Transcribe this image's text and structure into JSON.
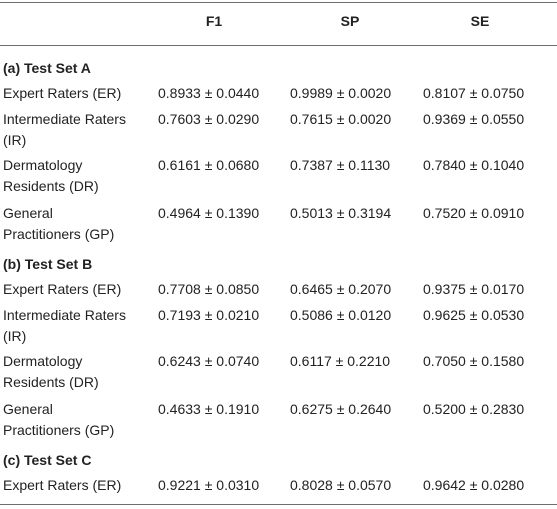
{
  "headers": [
    "",
    "F1",
    "SP",
    "SE"
  ],
  "sections": [
    {
      "title": "(a) Test Set A",
      "rows": [
        {
          "label": [
            "Expert Raters (ER)"
          ],
          "values": [
            "0.8933 ± 0.0440",
            "0.9989 ± 0.0020",
            "0.8107 ± 0.0750"
          ]
        },
        {
          "label": [
            "Intermediate Raters",
            "(IR)"
          ],
          "values": [
            "0.7603 ± 0.0290",
            "0.7615 ± 0.0020",
            "0.9369 ± 0.0550"
          ]
        },
        {
          "label": [
            "Dermatology",
            "Residents (DR)"
          ],
          "values": [
            "0.6161 ± 0.0680",
            "0.7387 ± 0.1130",
            "0.7840 ± 0.1040"
          ]
        },
        {
          "label": [
            "General",
            "Practitioners (GP)"
          ],
          "values": [
            "0.4964 ± 0.1390",
            "0.5013 ± 0.3194",
            "0.7520 ± 0.0910"
          ]
        }
      ]
    },
    {
      "title": "(b) Test Set B",
      "rows": [
        {
          "label": [
            "Expert Raters (ER)"
          ],
          "values": [
            "0.7708 ± 0.0850",
            "0.6465 ± 0.2070",
            "0.9375 ± 0.0170"
          ]
        },
        {
          "label": [
            "Intermediate Raters",
            "(IR)"
          ],
          "values": [
            "0.7193 ± 0.0210",
            "0.5086 ± 0.0120",
            "0.9625 ± 0.0530"
          ]
        },
        {
          "label": [
            "Dermatology",
            "Residents (DR)"
          ],
          "values": [
            "0.6243 ± 0.0740",
            "0.6117 ± 0.2210",
            "0.7050 ± 0.1580"
          ]
        },
        {
          "label": [
            "General",
            "Practitioners (GP)"
          ],
          "values": [
            "0.4633 ± 0.1910",
            "0.6275 ± 0.2640",
            "0.5200 ± 0.2830"
          ]
        }
      ]
    },
    {
      "title": "(c) Test Set C",
      "rows": [
        {
          "label": [
            "Expert Raters (ER)"
          ],
          "values": [
            "0.9221 ± 0.0310",
            "0.8028 ± 0.0570",
            "0.9642 ± 0.0280"
          ]
        }
      ]
    }
  ]
}
